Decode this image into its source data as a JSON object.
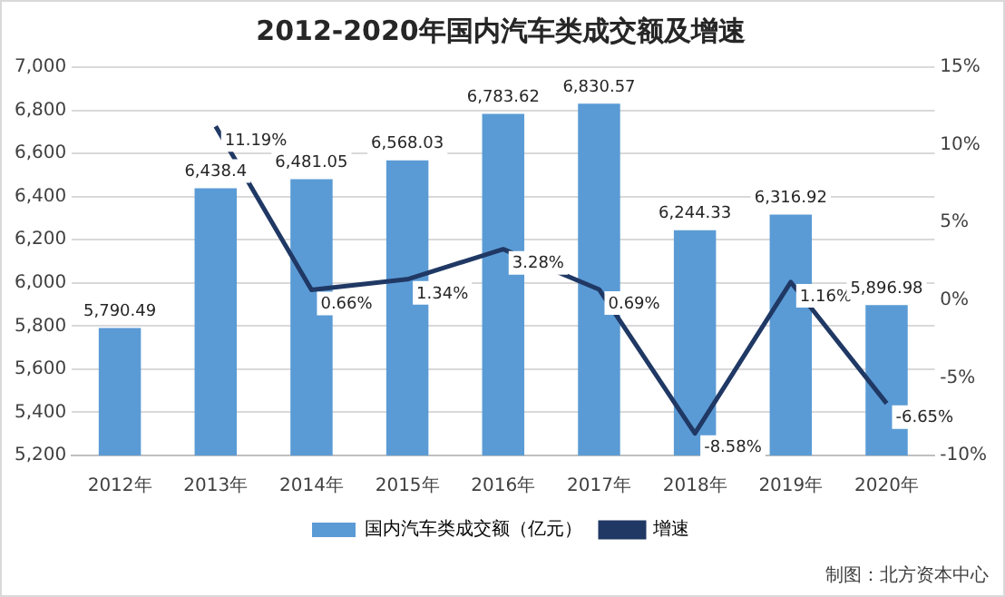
{
  "chart_data": {
    "type": "bar",
    "title": "2012-2020年国内汽车类成交额及增速",
    "categories": [
      "2012年",
      "2013年",
      "2014年",
      "2015年",
      "2016年",
      "2017年",
      "2018年",
      "2019年",
      "2020年"
    ],
    "series": [
      {
        "name": "国内汽车类成交额（亿元）",
        "color": "#5b9bd5",
        "values": [
          5790.49,
          6438.4,
          6481.05,
          6568.03,
          6783.62,
          6830.57,
          6244.33,
          6316.92,
          5896.98
        ],
        "value_labels": [
          "5,790.49",
          "6,438.4",
          "6,481.05",
          "6,568.03",
          "6,783.62",
          "6,830.57",
          "6,244.33",
          "6,316.92",
          "5,896.98"
        ]
      },
      {
        "name": "增速",
        "type": "line",
        "axis": "y2",
        "color": "#203864",
        "values": [
          null,
          11.19,
          0.66,
          1.34,
          3.28,
          0.69,
          -8.58,
          1.16,
          -6.65
        ],
        "value_labels": [
          null,
          "11.19%",
          "0.66%",
          "1.34%",
          "3.28%",
          "0.69%",
          "-8.58%",
          "1.16%",
          "-6.65%"
        ]
      }
    ],
    "ylim": [
      5200,
      7000
    ],
    "yticks": [
      {
        "value": 5200,
        "label": "5,200"
      },
      {
        "value": 5400,
        "label": "5,400"
      },
      {
        "value": 5600,
        "label": "5,600"
      },
      {
        "value": 5800,
        "label": "5,800"
      },
      {
        "value": 6000,
        "label": "6,000"
      },
      {
        "value": 6200,
        "label": "6,200"
      },
      {
        "value": 6400,
        "label": "6,400"
      },
      {
        "value": 6600,
        "label": "6,600"
      },
      {
        "value": 6800,
        "label": "6,800"
      },
      {
        "value": 7000,
        "label": "7,000"
      }
    ],
    "y2lim": [
      -10,
      15
    ],
    "y2ticks": [
      {
        "value": -10,
        "label": "-10%"
      },
      {
        "value": -5,
        "label": "-5%"
      },
      {
        "value": 0,
        "label": "0%"
      },
      {
        "value": 5,
        "label": "5%"
      },
      {
        "value": 10,
        "label": "10%"
      },
      {
        "value": 15,
        "label": "15%"
      }
    ],
    "grid": "y",
    "legend": "bottom",
    "marker": "none",
    "line_style": "solid",
    "annotations": [
      "制图：北方资本中心"
    ]
  }
}
